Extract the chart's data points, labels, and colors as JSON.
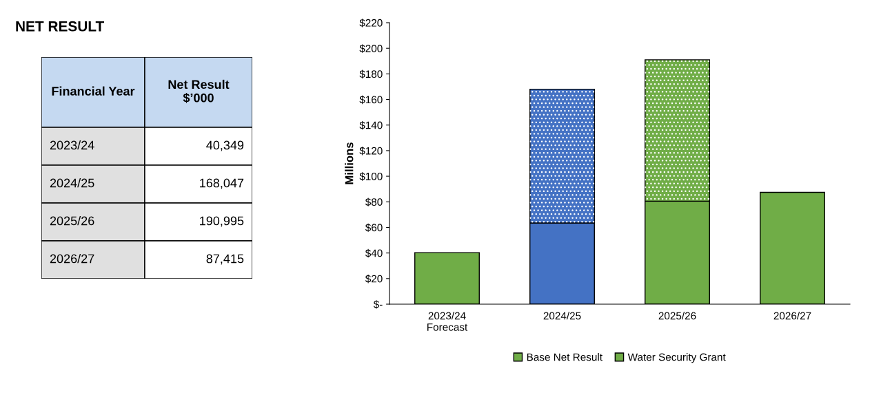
{
  "chart_data": [
    {
      "type": "other",
      "title": "NET RESULT",
      "xlabel": "Financial Year",
      "ylabel": "Net Result $’000",
      "categories": [
        "2023/24",
        "2024/25",
        "2025/26",
        "2026/27"
      ],
      "value_labels": [
        "40,349",
        "168,047",
        "190,995",
        "87,415"
      ]
    },
    {
      "type": "bar",
      "stacked": true,
      "ylabel": "Millions",
      "categories": [
        "2023/24\nForecast",
        "2024/25",
        "2025/26",
        "2026/27"
      ],
      "series": [
        {
          "name": "Base Net Result",
          "color": "#70ad47",
          "colors": [
            "#70ad47",
            "#4472c4",
            "#70ad47",
            "#70ad47"
          ],
          "values": [
            40.3,
            63.5,
            80.5,
            87.4
          ]
        },
        {
          "name": "Water Security Grant",
          "color": "#70ad47",
          "colors": [
            null,
            "#4472c4",
            "#70ad47",
            null
          ],
          "values": [
            null,
            104.5,
            110.5,
            null
          ]
        }
      ],
      "ylim": [
        0,
        220
      ],
      "yticks": [
        {
          "value": 0,
          "label": "$-"
        },
        {
          "value": 20,
          "label": "$20"
        },
        {
          "value": 40,
          "label": "$40"
        },
        {
          "value": 60,
          "label": "$60"
        },
        {
          "value": 80,
          "label": "$80"
        },
        {
          "value": 100,
          "label": "$100"
        },
        {
          "value": 120,
          "label": "$120"
        },
        {
          "value": 140,
          "label": "$140"
        },
        {
          "value": 160,
          "label": "$160"
        },
        {
          "value": 180,
          "label": "$180"
        },
        {
          "value": 200,
          "label": "$200"
        },
        {
          "value": 220,
          "label": "$220"
        }
      ],
      "grid": false,
      "legend": "bottom"
    }
  ]
}
